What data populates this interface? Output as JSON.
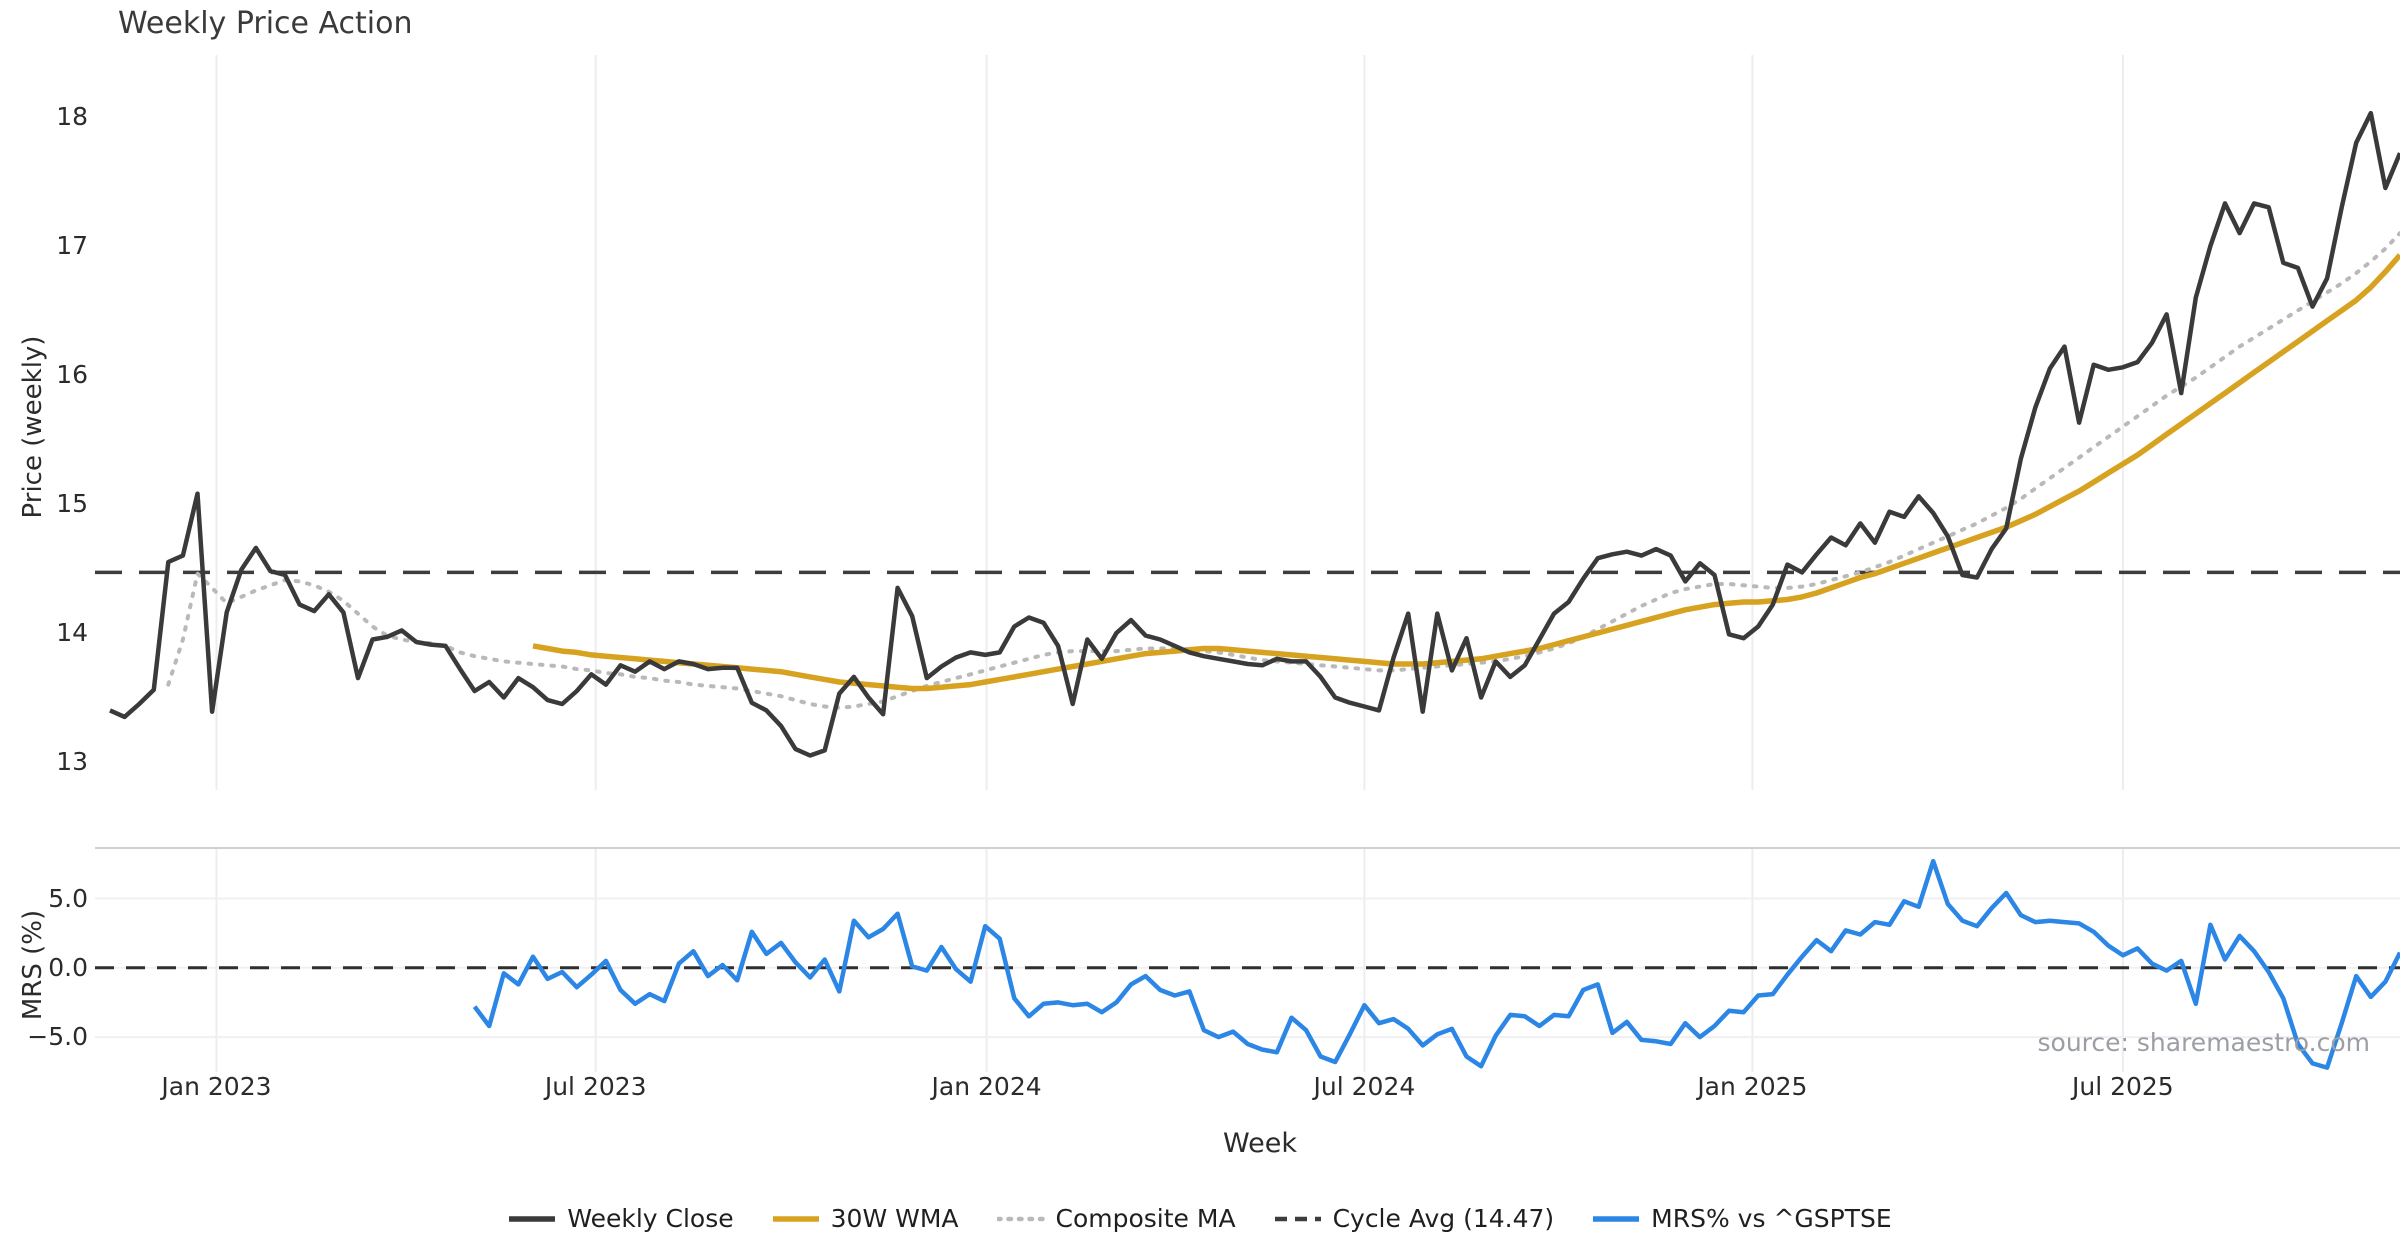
{
  "title": "Weekly Price Action",
  "source_note": "source: sharemaestro.com",
  "colors": {
    "close": "#3a3a3a",
    "wma": "#d7a21f",
    "composite": "#b9b9b9",
    "cycle": "#3d3d3d",
    "mrs": "#2b86e5",
    "grid_vertical": "#ececf1",
    "grid_horizontal": "#f0f0f3",
    "panel_spine": "#cfcfd4",
    "zero_line": "#2f2f2f"
  },
  "chart_data": {
    "type": "line",
    "title": "Weekly Price Action",
    "x_axis": {
      "label": "Week",
      "ticks": [
        {
          "label": "Jan 2023",
          "week": 7.3
        },
        {
          "label": "Jul 2023",
          "week": 33.3
        },
        {
          "label": "Jan 2024",
          "week": 60.1
        },
        {
          "label": "Jul 2024",
          "week": 86.0
        },
        {
          "label": "Jan 2025",
          "week": 112.6
        },
        {
          "label": "Jul 2025",
          "week": 138.0
        }
      ]
    },
    "price_panel": {
      "ylabel": "Price (weekly)",
      "ylim": [
        12.8,
        18.5
      ],
      "yticks": [
        "13",
        "14",
        "15",
        "16",
        "17",
        "18"
      ],
      "ytick_values": [
        13,
        14,
        15,
        16,
        17,
        18
      ],
      "grid": "vertical-only",
      "cycle_avg": 14.47
    },
    "mrs_panel": {
      "ylabel": "MRS (%)",
      "ylim": [
        -9.2,
        8.6
      ],
      "yticks": [
        "5.0",
        "0.0",
        "−5.0"
      ],
      "ytick_values": [
        5.0,
        0.0,
        -5.0
      ],
      "grid": "both",
      "zero_line": 0.0
    },
    "weeks": 158,
    "legend_position": "bottom-center",
    "series": [
      {
        "name": "Weekly Close",
        "panel": "price",
        "style": "solid",
        "color_key": "close",
        "values": [
          13.4,
          13.35,
          13.45,
          13.56,
          14.55,
          14.6,
          15.08,
          13.39,
          14.16,
          14.49,
          14.66,
          14.48,
          14.45,
          14.22,
          14.17,
          14.3,
          14.16,
          13.65,
          13.95,
          13.97,
          14.02,
          13.93,
          13.91,
          13.9,
          13.72,
          13.55,
          13.62,
          13.5,
          13.65,
          13.58,
          13.48,
          13.45,
          13.55,
          13.68,
          13.6,
          13.75,
          13.7,
          13.78,
          13.72,
          13.78,
          13.76,
          13.72,
          13.73,
          13.73,
          13.46,
          13.4,
          13.28,
          13.1,
          13.05,
          13.09,
          13.53,
          13.66,
          13.5,
          13.37,
          14.35,
          14.13,
          13.65,
          13.74,
          13.81,
          13.85,
          13.83,
          13.85,
          14.05,
          14.12,
          14.08,
          13.9,
          13.45,
          13.95,
          13.8,
          14.0,
          14.1,
          13.98,
          13.95,
          13.9,
          13.85,
          13.82,
          13.8,
          13.78,
          13.76,
          13.75,
          13.8,
          13.78,
          13.78,
          13.66,
          13.5,
          13.46,
          13.43,
          13.4,
          13.81,
          14.15,
          13.39,
          14.15,
          13.71,
          13.96,
          13.5,
          13.78,
          13.66,
          13.75,
          13.95,
          14.15,
          14.24,
          14.42,
          14.58,
          14.61,
          14.63,
          14.6,
          14.65,
          14.6,
          14.4,
          14.54,
          14.45,
          13.99,
          13.96,
          14.05,
          14.22,
          14.53,
          14.47,
          14.61,
          14.74,
          14.68,
          14.85,
          14.7,
          14.94,
          14.9,
          15.06,
          14.93,
          14.75,
          14.45,
          14.43,
          14.65,
          14.81,
          15.35,
          15.75,
          16.05,
          16.22,
          15.63,
          16.08,
          16.04,
          16.06,
          16.1,
          16.25,
          16.47,
          15.86,
          16.6,
          17.0,
          17.33,
          17.1,
          17.33,
          17.3,
          16.87,
          16.83,
          16.53,
          16.75,
          17.3,
          17.8,
          18.03,
          17.45,
          17.72
        ]
      },
      {
        "name": "30W WMA",
        "panel": "price",
        "style": "solid",
        "color_key": "wma",
        "values": [
          null,
          null,
          null,
          null,
          null,
          null,
          null,
          null,
          null,
          null,
          null,
          null,
          null,
          null,
          null,
          null,
          null,
          null,
          null,
          null,
          null,
          null,
          null,
          null,
          null,
          null,
          null,
          null,
          null,
          13.9,
          13.88,
          13.86,
          13.85,
          13.83,
          13.82,
          13.81,
          13.8,
          13.79,
          13.78,
          13.77,
          13.76,
          13.75,
          13.74,
          13.73,
          13.72,
          13.71,
          13.7,
          13.68,
          13.66,
          13.64,
          13.62,
          13.61,
          13.6,
          13.59,
          13.58,
          13.57,
          13.57,
          13.58,
          13.59,
          13.6,
          13.62,
          13.64,
          13.66,
          13.68,
          13.7,
          13.72,
          13.74,
          13.76,
          13.78,
          13.8,
          13.82,
          13.84,
          13.85,
          13.86,
          13.87,
          13.88,
          13.88,
          13.87,
          13.86,
          13.85,
          13.84,
          13.83,
          13.82,
          13.81,
          13.8,
          13.79,
          13.78,
          13.77,
          13.76,
          13.76,
          13.76,
          13.77,
          13.78,
          13.79,
          13.8,
          13.82,
          13.84,
          13.86,
          13.88,
          13.91,
          13.94,
          13.97,
          14.0,
          14.03,
          14.06,
          14.09,
          14.12,
          14.15,
          14.18,
          14.2,
          14.22,
          14.23,
          14.24,
          14.24,
          14.25,
          14.26,
          14.28,
          14.31,
          14.35,
          14.39,
          14.43,
          14.46,
          14.5,
          14.54,
          14.58,
          14.62,
          14.66,
          14.7,
          14.74,
          14.78,
          14.82,
          14.87,
          14.92,
          14.98,
          15.04,
          15.1,
          15.17,
          15.24,
          15.31,
          15.38,
          15.46,
          15.54,
          15.62,
          15.7,
          15.78,
          15.86,
          15.94,
          16.02,
          16.1,
          16.18,
          16.26,
          16.34,
          16.42,
          16.5,
          16.58,
          16.68,
          16.8,
          16.93
        ]
      },
      {
        "name": "Composite MA",
        "panel": "price",
        "style": "dotted",
        "color_key": "composite",
        "values": [
          null,
          null,
          null,
          null,
          13.6,
          13.95,
          14.46,
          14.35,
          14.23,
          14.28,
          14.33,
          14.37,
          14.41,
          14.4,
          14.37,
          14.32,
          14.25,
          14.15,
          14.05,
          13.98,
          13.95,
          13.93,
          13.92,
          13.9,
          13.85,
          13.82,
          13.8,
          13.78,
          13.77,
          13.76,
          13.75,
          13.74,
          13.72,
          13.71,
          13.69,
          13.68,
          13.66,
          13.65,
          13.63,
          13.62,
          13.6,
          13.59,
          13.58,
          13.57,
          13.55,
          13.53,
          13.51,
          13.48,
          13.45,
          13.43,
          13.42,
          13.43,
          13.45,
          13.47,
          13.51,
          13.55,
          13.59,
          13.62,
          13.65,
          13.68,
          13.71,
          13.74,
          13.77,
          13.8,
          13.83,
          13.85,
          13.86,
          13.86,
          13.86,
          13.86,
          13.87,
          13.88,
          13.88,
          13.88,
          13.87,
          13.86,
          13.85,
          13.83,
          13.81,
          13.79,
          13.78,
          13.77,
          13.76,
          13.75,
          13.74,
          13.73,
          13.72,
          13.71,
          13.71,
          13.72,
          13.73,
          13.74,
          13.75,
          13.76,
          13.77,
          13.78,
          13.8,
          13.82,
          13.85,
          13.88,
          13.92,
          13.97,
          14.03,
          14.09,
          14.15,
          14.21,
          14.26,
          14.31,
          14.34,
          14.36,
          14.38,
          14.38,
          14.37,
          14.36,
          14.35,
          14.35,
          14.36,
          14.38,
          14.41,
          14.44,
          14.47,
          14.51,
          14.55,
          14.6,
          14.65,
          14.7,
          14.75,
          14.8,
          14.85,
          14.91,
          14.97,
          15.04,
          15.12,
          15.2,
          15.28,
          15.36,
          15.44,
          15.52,
          15.6,
          15.68,
          15.76,
          15.84,
          15.91,
          15.98,
          16.06,
          16.14,
          16.22,
          16.29,
          16.36,
          16.43,
          16.5,
          16.57,
          16.64,
          16.71,
          16.79,
          16.88,
          16.98,
          17.1
        ]
      },
      {
        "name": "Cycle Avg (14.47)",
        "panel": "price",
        "style": "dashed",
        "color_key": "cycle",
        "constant": 14.47
      },
      {
        "name": "MRS% vs ^GSPTSE",
        "panel": "mrs",
        "style": "solid",
        "color_key": "mrs",
        "values": [
          null,
          null,
          null,
          null,
          null,
          null,
          null,
          null,
          null,
          null,
          null,
          null,
          null,
          null,
          null,
          null,
          null,
          null,
          null,
          null,
          null,
          null,
          null,
          null,
          null,
          -2.8,
          -4.2,
          -0.4,
          -1.2,
          0.8,
          -0.8,
          -0.3,
          -1.4,
          -0.5,
          0.5,
          -1.6,
          -2.6,
          -1.9,
          -2.4,
          0.3,
          1.2,
          -0.6,
          0.2,
          -0.9,
          2.6,
          1.0,
          1.8,
          0.4,
          -0.7,
          0.6,
          -1.7,
          3.4,
          2.2,
          2.8,
          3.9,
          0.1,
          -0.2,
          1.5,
          -0.1,
          -1.0,
          3.0,
          2.1,
          -2.2,
          -3.5,
          -2.6,
          -2.5,
          -2.7,
          -2.6,
          -3.2,
          -2.5,
          -1.2,
          -0.6,
          -1.6,
          -2.0,
          -1.7,
          -4.5,
          -5.0,
          -4.6,
          -5.5,
          -5.9,
          -6.1,
          -3.6,
          -4.5,
          -6.4,
          -6.8,
          -4.8,
          -2.7,
          -4.0,
          -3.7,
          -4.4,
          -5.6,
          -4.8,
          -4.4,
          -6.4,
          -7.1,
          -4.9,
          -3.4,
          -3.5,
          -4.2,
          -3.4,
          -3.5,
          -1.6,
          -1.2,
          -4.7,
          -3.9,
          -5.2,
          -5.3,
          -5.5,
          -4.0,
          -5.0,
          -4.2,
          -3.1,
          -3.2,
          -2.0,
          -1.9,
          -0.5,
          0.8,
          2.0,
          1.2,
          2.7,
          2.4,
          3.3,
          3.1,
          4.8,
          4.4,
          7.7,
          4.6,
          3.4,
          3.0,
          4.3,
          5.4,
          3.8,
          3.3,
          3.4,
          3.3,
          3.2,
          2.6,
          1.6,
          0.9,
          1.4,
          0.3,
          -0.2,
          0.5,
          -2.6,
          3.1,
          0.6,
          2.3,
          1.2,
          -0.3,
          -2.2,
          -5.5,
          -6.9,
          -7.2,
          -4.0,
          -0.6,
          -2.1,
          -1.0,
          1.1
        ]
      }
    ]
  }
}
